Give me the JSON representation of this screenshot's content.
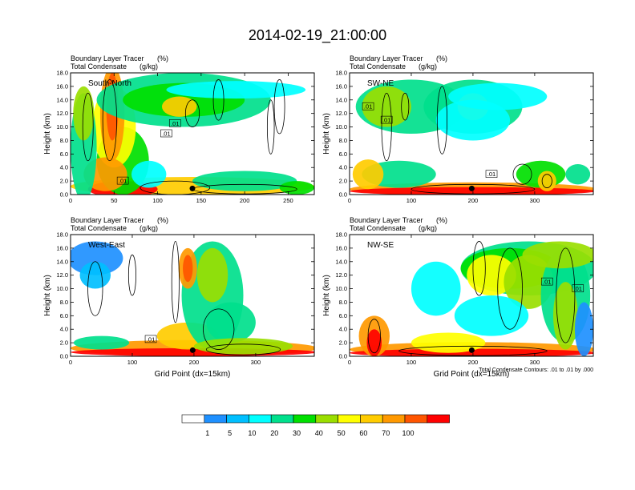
{
  "figure_title": "2014-02-19_21:00:00",
  "chart_data": [
    {
      "type": "heatmap",
      "panel_label": "South-North",
      "subtitle_left_1": "Boundary Layer Tracer",
      "subtitle_unit_1": "(%)",
      "subtitle_left_2": "Total Condensate",
      "subtitle_unit_2": "(g/kg)",
      "ylabel": "Height (km)",
      "xlabel": "",
      "xlim": [
        0,
        280
      ],
      "ylim": [
        0,
        18
      ],
      "xticks": [
        "0",
        "50",
        "100",
        "150",
        "200",
        "250"
      ],
      "yticks": [
        "0.0",
        "2.0",
        "4.0",
        "6.0",
        "8.0",
        "10.0",
        "12.0",
        "14.0",
        "16.0",
        "18.0"
      ],
      "contour_labels": [
        ".01",
        ".01",
        ".01"
      ],
      "marker_x": 140,
      "note": ""
    },
    {
      "type": "heatmap",
      "panel_label": "SW-NE",
      "subtitle_left_1": "Boundary Layer Tracer",
      "subtitle_unit_1": "(%)",
      "subtitle_left_2": "Total Condensate",
      "subtitle_unit_2": "(g/kg)",
      "ylabel": "Height (km)",
      "xlabel": "",
      "xlim": [
        0,
        395
      ],
      "ylim": [
        0,
        18
      ],
      "xticks": [
        "0",
        "100",
        "200",
        "300"
      ],
      "yticks": [
        "0.0",
        "2.0",
        "4.0",
        "6.0",
        "8.0",
        "10.0",
        "12.0",
        "14.0",
        "16.0",
        "18.0"
      ],
      "contour_labels": [
        ".01",
        ".01",
        ".01"
      ],
      "marker_x": 198,
      "note": ""
    },
    {
      "type": "heatmap",
      "panel_label": "West-East",
      "subtitle_left_1": "Boundary Layer Tracer",
      "subtitle_unit_1": "(%)",
      "subtitle_left_2": "Total Condensate",
      "subtitle_unit_2": "(g/kg)",
      "ylabel": "Height (km)",
      "xlabel": "Grid Point (dx=15km)",
      "xlim": [
        0,
        395
      ],
      "ylim": [
        0,
        18
      ],
      "xticks": [
        "0",
        "100",
        "200",
        "300"
      ],
      "yticks": [
        "0.0",
        "2.0",
        "4.0",
        "6.0",
        "8.0",
        "10.0",
        "12.0",
        "14.0",
        "16.0",
        "18.0"
      ],
      "contour_labels": [
        ".01"
      ],
      "marker_x": 198,
      "note": ""
    },
    {
      "type": "heatmap",
      "panel_label": "NW-SE",
      "subtitle_left_1": "Boundary Layer Tracer",
      "subtitle_unit_1": "(%)",
      "subtitle_left_2": "Total Condensate",
      "subtitle_unit_2": "(g/kg)",
      "ylabel": "Height (km)",
      "xlabel": "Grid Point (dx=15km)",
      "xlim": [
        0,
        395
      ],
      "ylim": [
        0,
        18
      ],
      "xticks": [
        "0",
        "100",
        "200",
        "300"
      ],
      "yticks": [
        "0.0",
        "2.0",
        "4.0",
        "6.0",
        "8.0",
        "10.0",
        "12.0",
        "14.0",
        "16.0",
        "18.0"
      ],
      "contour_labels": [
        ".01",
        ".01"
      ],
      "marker_x": 198,
      "note": "Total Condensate Contours: .01 to .01 by .000"
    }
  ],
  "colorbar": {
    "labels": [
      "1",
      "5",
      "10",
      "20",
      "30",
      "40",
      "50",
      "60",
      "70",
      "100"
    ],
    "colors": [
      "#ffffff",
      "#1e90ff",
      "#00bfff",
      "#00ffff",
      "#00e08c",
      "#00e000",
      "#9ade00",
      "#ffff00",
      "#ffcc00",
      "#ff9900",
      "#ff5500",
      "#ff0000"
    ]
  }
}
